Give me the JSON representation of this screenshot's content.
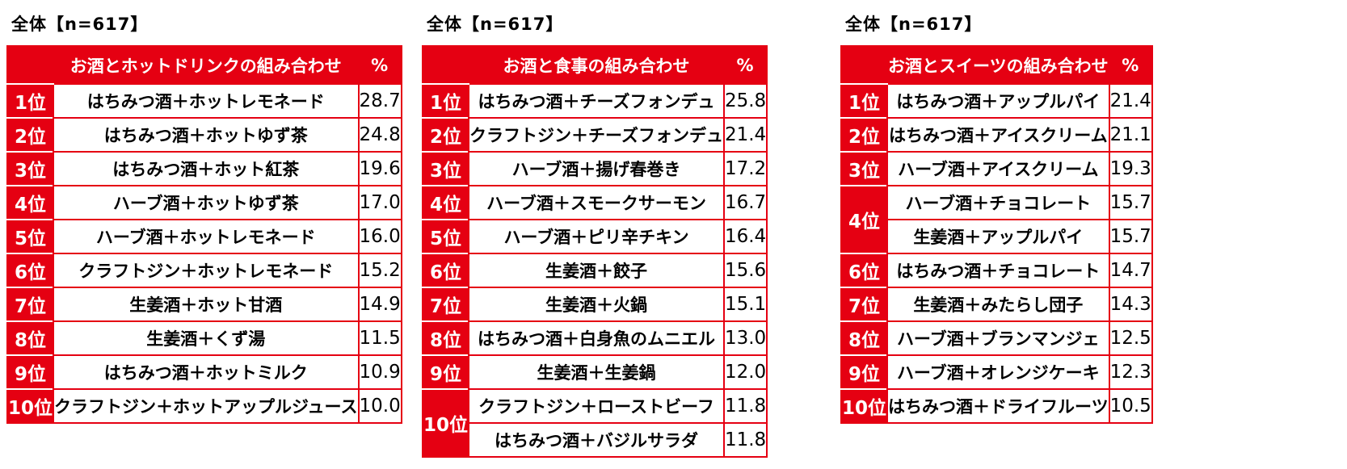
{
  "chart_data": [
    {
      "type": "table",
      "title": "全体【n=617】",
      "columns": [
        "",
        "お酒とホットドリンクの組み合わせ",
        "%"
      ],
      "rows": [
        {
          "rank": "1位",
          "item": "はちみつ酒＋ホットレモネード",
          "value": "28.7"
        },
        {
          "rank": "2位",
          "item": "はちみつ酒＋ホットゆず茶",
          "value": "24.8"
        },
        {
          "rank": "3位",
          "item": "はちみつ酒＋ホット紅茶",
          "value": "19.6"
        },
        {
          "rank": "4位",
          "item": "ハーブ酒＋ホットゆず茶",
          "value": "17.0"
        },
        {
          "rank": "5位",
          "item": "ハーブ酒＋ホットレモネード",
          "value": "16.0"
        },
        {
          "rank": "6位",
          "item": "クラフトジン＋ホットレモネード",
          "value": "15.2"
        },
        {
          "rank": "7位",
          "item": "生姜酒＋ホット甘酒",
          "value": "14.9"
        },
        {
          "rank": "8位",
          "item": "生姜酒＋くず湯",
          "value": "11.5"
        },
        {
          "rank": "9位",
          "item": "はちみつ酒＋ホットミルク",
          "value": "10.9"
        },
        {
          "rank": "10位",
          "item": "クラフトジン＋ホットアップルジュース",
          "value": "10.0"
        }
      ]
    },
    {
      "type": "table",
      "title": "全体【n=617】",
      "columns": [
        "",
        "お酒と食事の組み合わせ",
        "%"
      ],
      "rows": [
        {
          "rank": "1位",
          "item": "はちみつ酒＋チーズフォンデュ",
          "value": "25.8"
        },
        {
          "rank": "2位",
          "item": "クラフトジン＋チーズフォンデュ",
          "value": "21.4"
        },
        {
          "rank": "3位",
          "item": "ハーブ酒＋揚げ春巻き",
          "value": "17.2"
        },
        {
          "rank": "4位",
          "item": "ハーブ酒＋スモークサーモン",
          "value": "16.7"
        },
        {
          "rank": "5位",
          "item": "ハーブ酒＋ピリ辛チキン",
          "value": "16.4"
        },
        {
          "rank": "6位",
          "item": "生姜酒＋餃子",
          "value": "15.6"
        },
        {
          "rank": "7位",
          "item": "生姜酒＋火鍋",
          "value": "15.1"
        },
        {
          "rank": "8位",
          "item": "はちみつ酒＋白身魚のムニエル",
          "value": "13.0"
        },
        {
          "rank": "9位",
          "item": "生姜酒＋生姜鍋",
          "value": "12.0"
        },
        {
          "rank": "10位",
          "item": "クラフトジン＋ローストビーフ",
          "value": "11.8"
        },
        {
          "rank": "",
          "item": "はちみつ酒＋バジルサラダ",
          "value": "11.8"
        }
      ]
    },
    {
      "type": "table",
      "title": "全体【n=617】",
      "columns": [
        "",
        "お酒とスイーツの組み合わせ",
        "%"
      ],
      "rows": [
        {
          "rank": "1位",
          "item": "はちみつ酒＋アップルパイ",
          "value": "21.4"
        },
        {
          "rank": "2位",
          "item": "はちみつ酒＋アイスクリーム",
          "value": "21.1"
        },
        {
          "rank": "3位",
          "item": "ハーブ酒＋アイスクリーム",
          "value": "19.3"
        },
        {
          "rank": "4位",
          "item": "ハーブ酒＋チョコレート",
          "value": "15.7"
        },
        {
          "rank": "",
          "item": "生姜酒＋アップルパイ",
          "value": "15.7"
        },
        {
          "rank": "6位",
          "item": "はちみつ酒＋チョコレート",
          "value": "14.7"
        },
        {
          "rank": "7位",
          "item": "生姜酒＋みたらし団子",
          "value": "14.3"
        },
        {
          "rank": "8位",
          "item": "ハーブ酒＋ブランマンジェ",
          "value": "12.5"
        },
        {
          "rank": "9位",
          "item": "ハーブ酒＋オレンジケーキ",
          "value": "12.3"
        },
        {
          "rank": "10位",
          "item": "はちみつ酒＋ドライフルーツ",
          "value": "10.5"
        }
      ]
    }
  ],
  "colors": {
    "accent": "#e50012",
    "cell_bg": "#ffffff",
    "text": "#000000"
  }
}
